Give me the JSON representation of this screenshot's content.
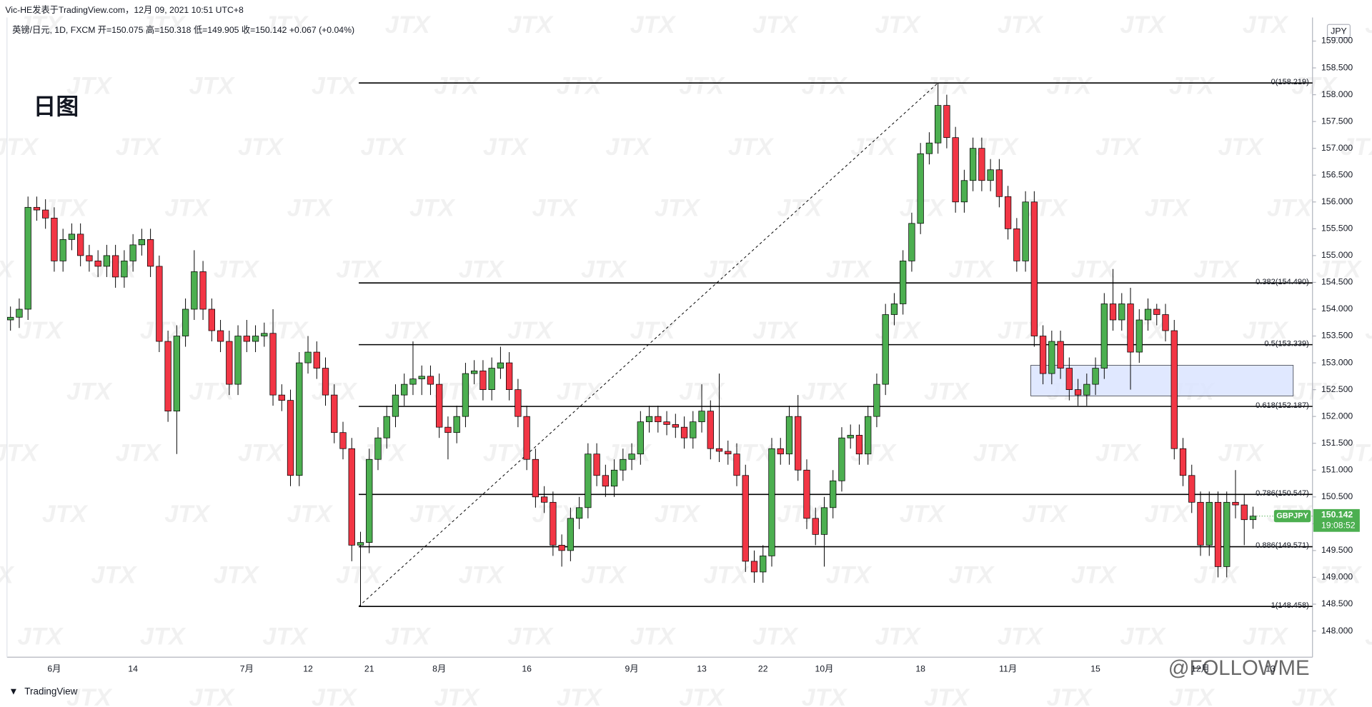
{
  "header": {
    "publisher_line": "Vic-HE发表于TradingView.com，12月 09, 2021 10:51 UTC+8",
    "symbol_line": "英镑/日元, 1D, FXCM  开=150.075  高=150.318  低=149.905  收=150.142  +0.067 (+0.04%)",
    "currency": "JPY",
    "brand": "TradingView",
    "watermark": "JTX",
    "corner_watermark": "@FOLLOWME"
  },
  "chart_data": {
    "type": "candlestick",
    "title": "日图",
    "symbol": "GBPJPY",
    "countdown": "19:08:52",
    "up_color": "#4caf50",
    "down_color": "#f23645",
    "ylim": [
      148,
      159
    ],
    "yticks": [
      {
        "value": 148,
        "label": "148.000"
      },
      {
        "value": 148.5,
        "label": "148.500"
      },
      {
        "value": 149,
        "label": "149.000"
      },
      {
        "value": 149.5,
        "label": "149.500"
      },
      {
        "value": 150,
        "label": "150.000"
      },
      {
        "value": 150.5,
        "label": "150.500"
      },
      {
        "value": 151,
        "label": "151.000"
      },
      {
        "value": 151.5,
        "label": "151.500"
      },
      {
        "value": 152,
        "label": "152.000"
      },
      {
        "value": 152.5,
        "label": "152.500"
      },
      {
        "value": 153,
        "label": "153.000"
      },
      {
        "value": 153.5,
        "label": "153.500"
      },
      {
        "value": 154,
        "label": "154.000"
      },
      {
        "value": 154.5,
        "label": "154.500"
      },
      {
        "value": 155,
        "label": "155.000"
      },
      {
        "value": 155.5,
        "label": "155.500"
      },
      {
        "value": 156,
        "label": "156.000"
      },
      {
        "value": 156.5,
        "label": "156.500"
      },
      {
        "value": 157,
        "label": "157.000"
      },
      {
        "value": 157.5,
        "label": "157.500"
      },
      {
        "value": 158,
        "label": "158.000"
      },
      {
        "value": 158.5,
        "label": "158.500"
      },
      {
        "value": 159,
        "label": "159.000"
      }
    ],
    "fib_levels": [
      {
        "price": 158.219,
        "label": "0(158.219)"
      },
      {
        "price": 154.49,
        "label": "0.382(154.490)"
      },
      {
        "price": 153.339,
        "label": "0.5(153.339)"
      },
      {
        "price": 152.187,
        "label": "0.618(152.187)"
      },
      {
        "price": 150.547,
        "label": "0.786(150.547)"
      },
      {
        "price": 149.571,
        "label": "0.886(149.571)"
      },
      {
        "price": 148.458,
        "label": "1(148.458)"
      }
    ],
    "categories": [
      null,
      null,
      null,
      null,
      null,
      "6月",
      null,
      null,
      null,
      null,
      null,
      null,
      null,
      null,
      "14",
      null,
      null,
      null,
      null,
      null,
      null,
      null,
      null,
      null,
      null,
      null,
      null,
      "7月",
      null,
      null,
      null,
      null,
      null,
      null,
      "12",
      null,
      null,
      null,
      null,
      null,
      null,
      "21",
      null,
      null,
      null,
      null,
      null,
      null,
      null,
      "8月",
      null,
      null,
      null,
      null,
      null,
      null,
      null,
      null,
      null,
      "16",
      null,
      null,
      null,
      null,
      null,
      null,
      null,
      null,
      null,
      null,
      null,
      "9月",
      null,
      null,
      null,
      null,
      null,
      null,
      null,
      "13",
      null,
      null,
      null,
      null,
      null,
      null,
      "22",
      null,
      null,
      null,
      null,
      null,
      null,
      "10月",
      null,
      null,
      null,
      null,
      null,
      null,
      null,
      null,
      null,
      null,
      "18",
      null,
      null,
      null,
      null,
      null,
      null,
      null,
      null,
      null,
      "11月",
      null,
      null,
      null,
      null,
      null,
      null,
      null,
      null,
      null,
      "15",
      null,
      null,
      null,
      null,
      null,
      null,
      null,
      null,
      null,
      null,
      null,
      "12月",
      null,
      null,
      null,
      null,
      null,
      null
    ],
    "x_label_after_last": "13",
    "ohlc": [
      [
        153.8,
        154.05,
        153.6,
        153.85
      ],
      [
        153.85,
        154.2,
        153.65,
        154.0
      ],
      [
        154.0,
        156.1,
        153.8,
        155.9
      ],
      [
        155.9,
        156.1,
        155.65,
        155.85
      ],
      [
        155.85,
        156.05,
        155.5,
        155.7
      ],
      [
        155.7,
        155.9,
        154.7,
        154.9
      ],
      [
        154.9,
        155.5,
        154.7,
        155.3
      ],
      [
        155.3,
        155.6,
        155.1,
        155.4
      ],
      [
        155.4,
        155.6,
        154.8,
        155.0
      ],
      [
        155.0,
        155.2,
        154.7,
        154.9
      ],
      [
        154.9,
        155.1,
        154.6,
        154.8
      ],
      [
        154.8,
        155.2,
        154.6,
        155.0
      ],
      [
        155.0,
        155.2,
        154.4,
        154.6
      ],
      [
        154.6,
        155.1,
        154.4,
        154.9
      ],
      [
        154.9,
        155.4,
        154.7,
        155.2
      ],
      [
        155.2,
        155.5,
        155.0,
        155.3
      ],
      [
        155.3,
        155.5,
        154.6,
        154.8
      ],
      [
        154.8,
        155.0,
        153.2,
        153.4
      ],
      [
        153.4,
        153.6,
        151.9,
        152.1
      ],
      [
        152.1,
        153.7,
        151.3,
        153.5
      ],
      [
        153.5,
        154.2,
        153.3,
        154.0
      ],
      [
        154.0,
        155.1,
        153.8,
        154.7
      ],
      [
        154.7,
        154.9,
        153.8,
        154.0
      ],
      [
        154.0,
        154.2,
        153.4,
        153.6
      ],
      [
        153.6,
        153.8,
        153.2,
        153.4
      ],
      [
        153.4,
        153.6,
        152.4,
        152.6
      ],
      [
        152.6,
        153.7,
        152.4,
        153.5
      ],
      [
        153.5,
        153.8,
        153.2,
        153.4
      ],
      [
        153.4,
        153.7,
        153.2,
        153.5
      ],
      [
        153.5,
        153.75,
        153.3,
        153.55
      ],
      [
        153.55,
        154.0,
        152.2,
        152.4
      ],
      [
        152.4,
        152.6,
        152.1,
        152.3
      ],
      [
        152.3,
        152.5,
        150.7,
        150.9
      ],
      [
        150.9,
        153.2,
        150.7,
        153.0
      ],
      [
        153.0,
        153.5,
        152.8,
        153.2
      ],
      [
        153.2,
        153.4,
        152.7,
        152.9
      ],
      [
        152.9,
        153.1,
        152.2,
        152.4
      ],
      [
        152.4,
        152.6,
        151.5,
        151.7
      ],
      [
        151.7,
        151.9,
        151.2,
        151.4
      ],
      [
        151.4,
        151.6,
        149.3,
        149.6
      ],
      [
        149.6,
        149.85,
        148.458,
        149.65
      ],
      [
        149.65,
        151.4,
        149.45,
        151.2
      ],
      [
        151.2,
        151.8,
        151.0,
        151.6
      ],
      [
        151.6,
        152.2,
        151.4,
        152.0
      ],
      [
        152.0,
        152.6,
        151.8,
        152.4
      ],
      [
        152.4,
        152.8,
        152.2,
        152.6
      ],
      [
        152.6,
        153.4,
        152.4,
        152.7
      ],
      [
        152.7,
        152.95,
        152.4,
        152.75
      ],
      [
        152.75,
        152.95,
        152.4,
        152.6
      ],
      [
        152.6,
        152.8,
        151.6,
        151.8
      ],
      [
        151.8,
        152.0,
        151.2,
        151.7
      ],
      [
        151.7,
        152.2,
        151.5,
        152.0
      ],
      [
        152.0,
        153.0,
        151.8,
        152.8
      ],
      [
        152.8,
        153.05,
        152.6,
        152.85
      ],
      [
        152.85,
        153.05,
        152.3,
        152.5
      ],
      [
        152.5,
        153.1,
        152.3,
        152.9
      ],
      [
        152.9,
        153.3,
        152.7,
        153.0
      ],
      [
        153.0,
        153.2,
        152.3,
        152.5
      ],
      [
        152.5,
        152.7,
        151.8,
        152.0
      ],
      [
        152.0,
        152.2,
        151.0,
        151.2
      ],
      [
        151.2,
        151.4,
        150.3,
        150.5
      ],
      [
        150.5,
        150.7,
        150.2,
        150.4
      ],
      [
        150.4,
        150.6,
        149.4,
        149.6
      ],
      [
        149.6,
        149.8,
        149.2,
        149.5
      ],
      [
        149.5,
        150.3,
        149.3,
        150.1
      ],
      [
        150.1,
        150.5,
        149.9,
        150.3
      ],
      [
        150.3,
        151.5,
        150.1,
        151.3
      ],
      [
        151.3,
        151.5,
        150.7,
        150.9
      ],
      [
        150.9,
        151.1,
        150.5,
        150.7
      ],
      [
        150.7,
        151.2,
        150.5,
        151.0
      ],
      [
        151.0,
        151.4,
        150.8,
        151.2
      ],
      [
        151.2,
        151.5,
        151.0,
        151.3
      ],
      [
        151.3,
        152.1,
        151.1,
        151.9
      ],
      [
        151.9,
        152.2,
        151.7,
        152.0
      ],
      [
        152.0,
        152.2,
        151.7,
        151.9
      ],
      [
        151.9,
        152.1,
        151.65,
        151.85
      ],
      [
        151.85,
        152.05,
        151.6,
        151.8
      ],
      [
        151.8,
        152.0,
        151.4,
        151.6
      ],
      [
        151.6,
        152.1,
        151.4,
        151.9
      ],
      [
        151.9,
        152.6,
        151.7,
        152.1
      ],
      [
        152.1,
        152.3,
        151.2,
        151.4
      ],
      [
        151.4,
        152.8,
        151.15,
        151.35
      ],
      [
        151.35,
        151.55,
        151.1,
        151.3
      ],
      [
        151.3,
        151.5,
        150.7,
        150.9
      ],
      [
        150.9,
        151.1,
        149.1,
        149.3
      ],
      [
        149.3,
        149.5,
        148.9,
        149.1
      ],
      [
        149.1,
        149.6,
        148.9,
        149.4
      ],
      [
        149.4,
        151.6,
        149.2,
        151.4
      ],
      [
        151.4,
        151.6,
        151.1,
        151.3
      ],
      [
        151.3,
        152.2,
        151.1,
        152.0
      ],
      [
        152.0,
        152.4,
        150.8,
        151.0
      ],
      [
        151.0,
        151.2,
        149.9,
        150.1
      ],
      [
        150.1,
        150.3,
        149.6,
        149.8
      ],
      [
        149.8,
        150.5,
        149.2,
        150.3
      ],
      [
        150.3,
        151.0,
        150.1,
        150.8
      ],
      [
        150.8,
        151.8,
        150.6,
        151.6
      ],
      [
        151.6,
        151.85,
        151.4,
        151.65
      ],
      [
        151.65,
        151.85,
        151.1,
        151.3
      ],
      [
        151.3,
        152.2,
        151.1,
        152.0
      ],
      [
        152.0,
        152.8,
        151.8,
        152.6
      ],
      [
        152.6,
        154.1,
        152.4,
        153.9
      ],
      [
        153.9,
        154.3,
        153.7,
        154.1
      ],
      [
        154.1,
        155.1,
        153.9,
        154.9
      ],
      [
        154.9,
        155.8,
        154.7,
        155.6
      ],
      [
        155.6,
        157.1,
        155.4,
        156.9
      ],
      [
        156.9,
        157.3,
        156.7,
        157.1
      ],
      [
        157.1,
        158.219,
        156.9,
        157.8
      ],
      [
        157.8,
        158.0,
        157.0,
        157.2
      ],
      [
        157.2,
        157.4,
        155.8,
        156.0
      ],
      [
        156.0,
        156.6,
        155.8,
        156.4
      ],
      [
        156.4,
        157.2,
        156.2,
        157.0
      ],
      [
        157.0,
        157.2,
        156.2,
        156.4
      ],
      [
        156.4,
        156.8,
        156.2,
        156.6
      ],
      [
        156.6,
        156.8,
        155.9,
        156.1
      ],
      [
        156.1,
        156.3,
        155.3,
        155.5
      ],
      [
        155.5,
        155.7,
        154.7,
        154.9
      ],
      [
        154.9,
        156.2,
        154.7,
        156.0
      ],
      [
        156.0,
        156.2,
        153.3,
        153.5
      ],
      [
        153.5,
        153.7,
        152.6,
        152.8
      ],
      [
        152.8,
        153.6,
        152.6,
        153.4
      ],
      [
        153.4,
        153.6,
        152.7,
        152.9
      ],
      [
        152.9,
        153.1,
        152.3,
        152.5
      ],
      [
        152.5,
        152.7,
        152.2,
        152.4
      ],
      [
        152.4,
        152.8,
        152.2,
        152.6
      ],
      [
        152.6,
        153.1,
        152.4,
        152.9
      ],
      [
        152.9,
        154.3,
        152.7,
        154.1
      ],
      [
        154.1,
        154.75,
        153.6,
        153.8
      ],
      [
        153.8,
        154.3,
        153.6,
        154.1
      ],
      [
        154.1,
        154.4,
        152.5,
        153.2
      ],
      [
        153.2,
        154.0,
        153.0,
        153.8
      ],
      [
        153.8,
        154.2,
        153.6,
        154.0
      ],
      [
        154.0,
        154.1,
        153.7,
        153.9
      ],
      [
        153.9,
        154.1,
        153.4,
        153.6
      ],
      [
        153.6,
        153.8,
        151.2,
        151.4
      ],
      [
        151.4,
        151.6,
        150.7,
        150.9
      ],
      [
        150.9,
        151.1,
        150.2,
        150.4
      ],
      [
        150.4,
        150.6,
        149.4,
        149.6
      ],
      [
        149.6,
        150.6,
        149.4,
        150.4
      ],
      [
        150.4,
        150.6,
        149.0,
        149.2
      ],
      [
        149.2,
        150.6,
        149.0,
        150.4
      ],
      [
        150.4,
        151.0,
        150.1,
        150.35
      ],
      [
        150.35,
        150.55,
        149.6,
        150.075
      ],
      [
        150.075,
        150.318,
        149.905,
        150.142
      ]
    ]
  }
}
